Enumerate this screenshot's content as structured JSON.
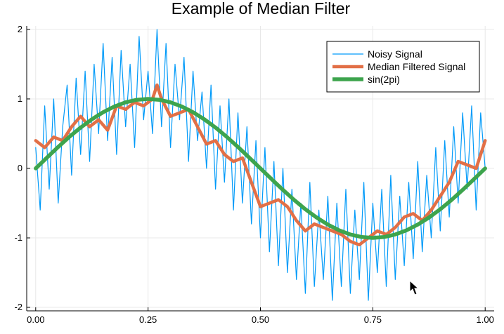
{
  "chart_data": {
    "type": "line",
    "title": "Example of Median Filter",
    "xlabel": "",
    "ylabel": "",
    "xlim": [
      -0.02,
      1.02
    ],
    "ylim": [
      -2.05,
      2.05
    ],
    "grid": true,
    "legend_position": "top-right",
    "x_ticks": [
      {
        "value": 0.0,
        "label": "0.00"
      },
      {
        "value": 0.25,
        "label": "0.25"
      },
      {
        "value": 0.5,
        "label": "0.50"
      },
      {
        "value": 0.75,
        "label": "0.75"
      },
      {
        "value": 1.0,
        "label": "1.00"
      }
    ],
    "y_ticks": [
      {
        "value": 2,
        "label": "2"
      },
      {
        "value": 1,
        "label": "1"
      },
      {
        "value": 0,
        "label": "0"
      },
      {
        "value": -1,
        "label": "-1"
      },
      {
        "value": -2,
        "label": "-2"
      }
    ],
    "series": [
      {
        "name": "Noisy Signal",
        "color": "#009af9",
        "x": [
          0.0,
          0.01,
          0.02,
          0.03,
          0.04,
          0.05,
          0.06,
          0.07,
          0.08,
          0.09,
          0.1,
          0.11,
          0.12,
          0.13,
          0.14,
          0.15,
          0.16,
          0.17,
          0.18,
          0.19,
          0.2,
          0.21,
          0.22,
          0.23,
          0.24,
          0.25,
          0.26,
          0.27,
          0.28,
          0.29,
          0.3,
          0.31,
          0.32,
          0.33,
          0.34,
          0.35,
          0.36,
          0.37,
          0.38,
          0.39,
          0.4,
          0.41,
          0.42,
          0.43,
          0.44,
          0.45,
          0.46,
          0.47,
          0.48,
          0.49,
          0.5,
          0.51,
          0.52,
          0.53,
          0.54,
          0.55,
          0.56,
          0.57,
          0.58,
          0.59,
          0.6,
          0.61,
          0.62,
          0.63,
          0.64,
          0.65,
          0.66,
          0.67,
          0.68,
          0.69,
          0.7,
          0.71,
          0.72,
          0.73,
          0.74,
          0.75,
          0.76,
          0.77,
          0.78,
          0.79,
          0.8,
          0.81,
          0.82,
          0.83,
          0.84,
          0.85,
          0.86,
          0.87,
          0.88,
          0.89,
          0.9,
          0.91,
          0.92,
          0.93,
          0.94,
          0.95,
          0.96,
          0.97,
          0.98,
          0.99,
          1.0
        ],
        "y": [
          0.3,
          -0.6,
          0.9,
          -0.3,
          1.0,
          -0.5,
          0.6,
          1.2,
          -0.1,
          1.3,
          0.2,
          1.4,
          0.1,
          1.5,
          0.5,
          1.8,
          0.4,
          1.6,
          0.2,
          1.7,
          0.6,
          1.5,
          0.3,
          1.9,
          0.7,
          1.4,
          0.5,
          2.0,
          0.6,
          1.8,
          0.3,
          1.5,
          0.7,
          1.6,
          0.1,
          1.4,
          0.4,
          1.1,
          0.0,
          1.2,
          -0.3,
          0.9,
          -0.2,
          1.0,
          -0.6,
          0.8,
          -0.5,
          0.6,
          -0.8,
          0.4,
          -1.0,
          0.3,
          -1.2,
          0.1,
          -1.4,
          0.0,
          -1.5,
          -0.3,
          -1.6,
          -0.5,
          -1.8,
          -0.2,
          -1.7,
          -0.6,
          -1.6,
          -0.4,
          -1.9,
          -0.5,
          -1.7,
          -0.3,
          -1.8,
          -0.6,
          -1.6,
          -0.2,
          -1.9,
          -0.5,
          -1.5,
          -0.3,
          -1.7,
          -0.1,
          -1.6,
          -0.4,
          -1.4,
          -0.2,
          -1.3,
          0.1,
          -1.2,
          -0.1,
          -1.0,
          0.3,
          -0.9,
          0.4,
          -0.7,
          0.6,
          -0.5,
          0.8,
          -0.3,
          0.9,
          -0.6,
          0.8,
          0.0
        ]
      },
      {
        "name": "Median Filtered Signal",
        "color": "#e26f46",
        "x": [
          0.0,
          0.02,
          0.04,
          0.06,
          0.08,
          0.1,
          0.12,
          0.14,
          0.16,
          0.18,
          0.2,
          0.22,
          0.24,
          0.26,
          0.27,
          0.28,
          0.3,
          0.32,
          0.34,
          0.36,
          0.38,
          0.4,
          0.42,
          0.44,
          0.46,
          0.48,
          0.5,
          0.52,
          0.54,
          0.56,
          0.58,
          0.6,
          0.62,
          0.64,
          0.66,
          0.68,
          0.7,
          0.72,
          0.74,
          0.76,
          0.78,
          0.8,
          0.82,
          0.84,
          0.86,
          0.88,
          0.9,
          0.92,
          0.94,
          0.96,
          0.98,
          1.0
        ],
        "y": [
          0.4,
          0.3,
          0.45,
          0.4,
          0.6,
          0.75,
          0.6,
          0.7,
          0.55,
          0.9,
          0.85,
          0.95,
          0.9,
          1.0,
          1.2,
          1.0,
          0.75,
          0.8,
          0.85,
          0.6,
          0.35,
          0.4,
          0.2,
          0.1,
          0.15,
          -0.2,
          -0.55,
          -0.5,
          -0.45,
          -0.55,
          -0.75,
          -0.9,
          -0.8,
          -0.85,
          -0.9,
          -0.95,
          -1.05,
          -1.1,
          -1.0,
          -0.9,
          -0.95,
          -0.85,
          -0.7,
          -0.65,
          -0.75,
          -0.6,
          -0.4,
          -0.2,
          0.1,
          0.05,
          0.0,
          0.4
        ]
      },
      {
        "name": "sin(2pi)",
        "color": "#3da44d",
        "x": [
          0.0,
          0.025,
          0.05,
          0.075,
          0.1,
          0.125,
          0.15,
          0.175,
          0.2,
          0.225,
          0.25,
          0.275,
          0.3,
          0.325,
          0.35,
          0.375,
          0.4,
          0.425,
          0.45,
          0.475,
          0.5,
          0.525,
          0.55,
          0.575,
          0.6,
          0.625,
          0.65,
          0.675,
          0.7,
          0.725,
          0.75,
          0.775,
          0.8,
          0.825,
          0.85,
          0.875,
          0.9,
          0.925,
          0.95,
          0.975,
          1.0
        ],
        "y": [
          0.0,
          0.156,
          0.309,
          0.454,
          0.588,
          0.707,
          0.809,
          0.891,
          0.951,
          0.988,
          1.0,
          0.988,
          0.951,
          0.891,
          0.809,
          0.707,
          0.588,
          0.454,
          0.309,
          0.156,
          0.0,
          -0.156,
          -0.309,
          -0.454,
          -0.588,
          -0.707,
          -0.809,
          -0.891,
          -0.951,
          -0.988,
          -1.0,
          -0.988,
          -0.951,
          -0.891,
          -0.809,
          -0.707,
          -0.588,
          -0.454,
          -0.309,
          -0.156,
          0.0
        ]
      }
    ]
  }
}
